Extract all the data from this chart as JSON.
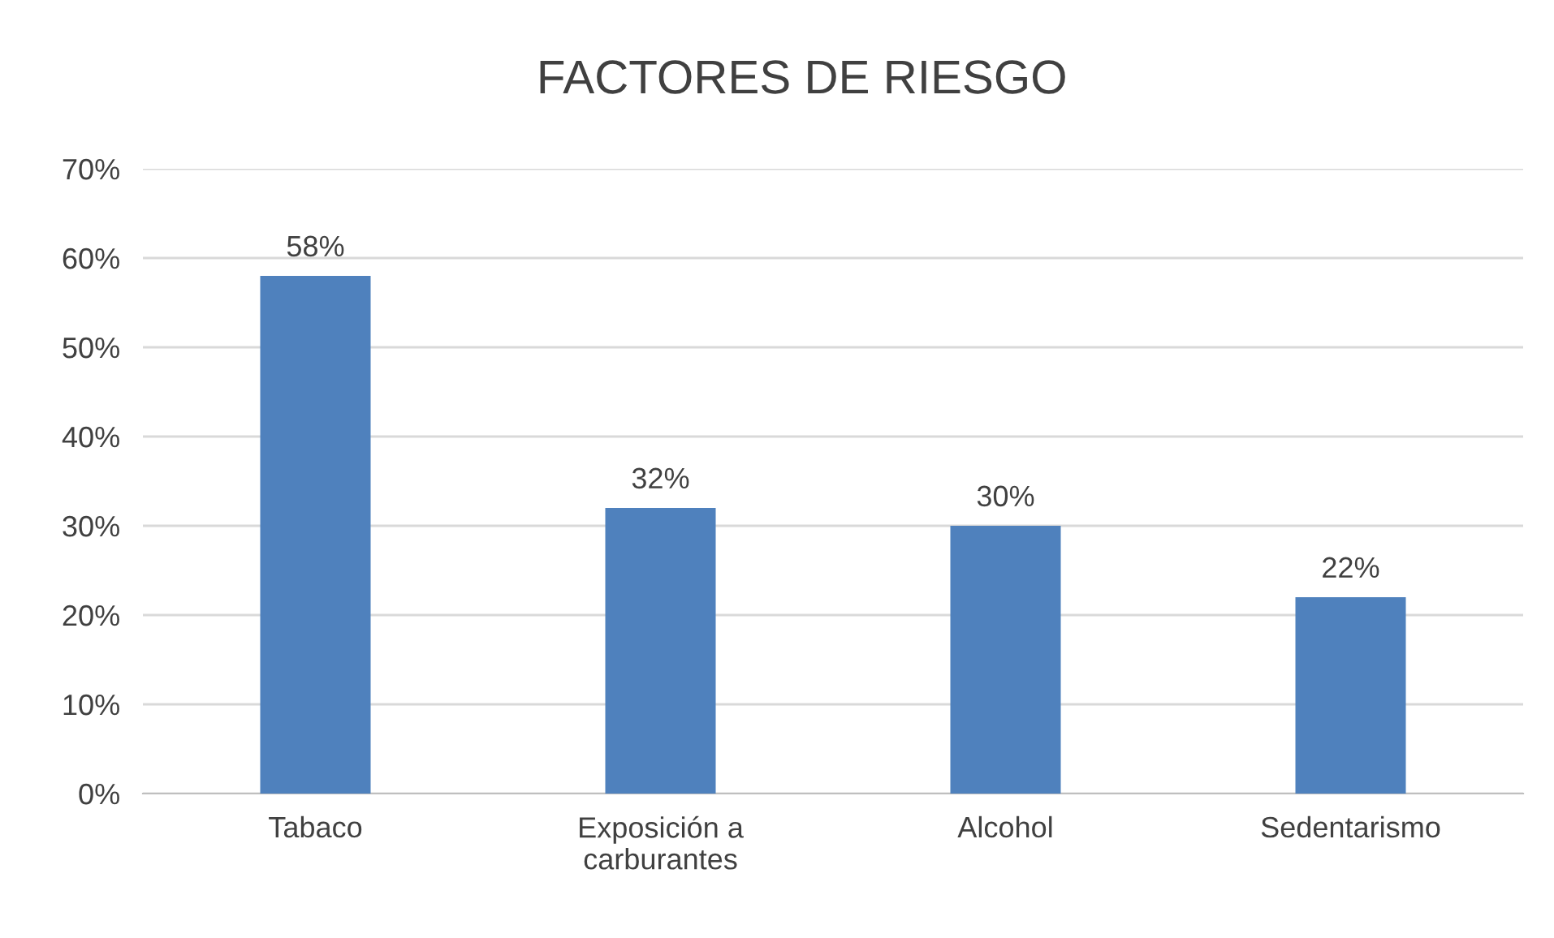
{
  "chart_data": {
    "type": "bar",
    "title": "FACTORES DE RIESGO",
    "categories": [
      "Tabaco",
      "Exposición a carburantes",
      "Alcohol",
      "Sedentarismo"
    ],
    "values": [
      58,
      32,
      30,
      22
    ],
    "value_labels": [
      "58%",
      "32%",
      "30%",
      "22%"
    ],
    "color": "#4f81bd",
    "ylim": [
      0,
      70
    ],
    "yticks": [
      {
        "value": 0,
        "label": "0%"
      },
      {
        "value": 10,
        "label": "10%"
      },
      {
        "value": 20,
        "label": "20%"
      },
      {
        "value": 30,
        "label": "30%"
      },
      {
        "value": 40,
        "label": "40%"
      },
      {
        "value": 50,
        "label": "50%"
      },
      {
        "value": 60,
        "label": "60%"
      },
      {
        "value": 70,
        "label": "70%"
      }
    ],
    "grid": "y"
  }
}
